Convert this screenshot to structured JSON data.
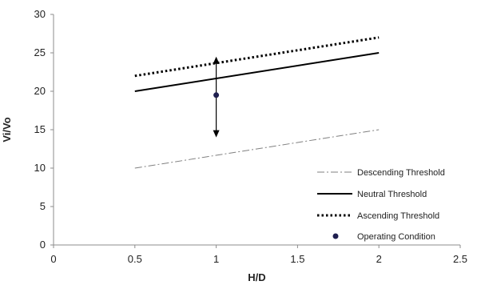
{
  "chart_data": {
    "type": "line",
    "xlabel": "H/D",
    "ylabel": "Vi/Vo",
    "xlim": [
      0,
      2.5
    ],
    "ylim": [
      0,
      30
    ],
    "xticks": [
      0,
      0.5,
      1,
      1.5,
      2,
      2.5
    ],
    "yticks": [
      0,
      5,
      10,
      15,
      20,
      25,
      30
    ],
    "xtick_labels": [
      "0",
      "0.5",
      "1",
      "1.5",
      "2",
      "2.5"
    ],
    "ytick_labels": [
      "0",
      "5",
      "10",
      "15",
      "20",
      "25",
      "30"
    ],
    "grid": false,
    "legend_position": "bottom-right",
    "series": [
      {
        "name": "Descending Threshold",
        "style": "dash-dot",
        "color": "#808080",
        "x": [
          0.5,
          2
        ],
        "y": [
          10,
          15
        ]
      },
      {
        "name": "Neutral Threshold",
        "style": "solid",
        "color": "#000000",
        "x": [
          0.5,
          2
        ],
        "y": [
          20,
          25
        ]
      },
      {
        "name": "Ascending Threshold",
        "style": "dotted",
        "color": "#000000",
        "x": [
          0.5,
          2
        ],
        "y": [
          22,
          27
        ]
      }
    ],
    "operating_point": {
      "name": "Operating Condition",
      "x": 1,
      "y": 19.5,
      "color": "#1f1f4f"
    },
    "arrow": {
      "x": 1,
      "y_from": 14,
      "y_to": 24.5
    }
  }
}
